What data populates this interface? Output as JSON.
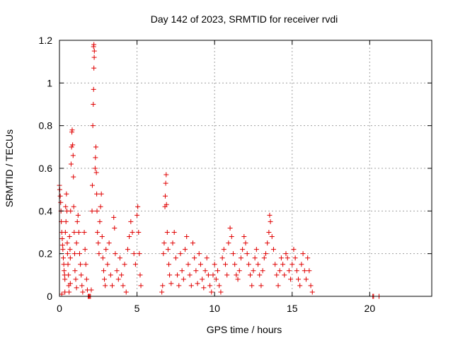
{
  "chart_data": {
    "type": "scatter",
    "title": "Day 142 of 2023, SRMTID for receiver rvdi",
    "xlabel": "GPS time / hours",
    "ylabel": "SRMTID / TECUs",
    "xlim": [
      0,
      24
    ],
    "ylim": [
      0,
      1.2
    ],
    "x_ticks": [
      0,
      5,
      10,
      15,
      20
    ],
    "y_ticks": [
      0,
      0.2,
      0.4,
      0.6,
      0.8,
      1,
      1.2
    ],
    "x_tick_labels": [
      "0",
      "5",
      "10",
      "15",
      "20"
    ],
    "y_tick_labels": [
      "0",
      "0.2",
      "0.4",
      "0.6",
      "0.8",
      "1",
      "1.2"
    ],
    "grid": true,
    "marker": "plus",
    "series": [
      {
        "name": "SRMTID",
        "color": "#e00000",
        "points": [
          [
            0.0,
            0.52
          ],
          [
            0.02,
            0.5
          ],
          [
            0.05,
            0.47
          ],
          [
            0.08,
            0.44
          ],
          [
            0.1,
            0.4
          ],
          [
            0.12,
            0.35
          ],
          [
            0.15,
            0.3
          ],
          [
            0.18,
            0.27
          ],
          [
            0.2,
            0.24
          ],
          [
            0.22,
            0.22
          ],
          [
            0.25,
            0.18
          ],
          [
            0.28,
            0.15
          ],
          [
            0.3,
            0.12
          ],
          [
            0.33,
            0.1
          ],
          [
            0.35,
            0.08
          ],
          [
            0.38,
            0.3
          ],
          [
            0.4,
            0.42
          ],
          [
            0.42,
            0.35
          ],
          [
            0.45,
            0.48
          ],
          [
            0.48,
            0.4
          ],
          [
            0.5,
            0.25
          ],
          [
            0.52,
            0.2
          ],
          [
            0.55,
            0.15
          ],
          [
            0.58,
            0.1
          ],
          [
            0.6,
            0.05
          ],
          [
            0.62,
            0.02
          ],
          [
            0.65,
            0.28
          ],
          [
            0.68,
            0.22
          ],
          [
            0.7,
            0.18
          ],
          [
            0.72,
            0.4
          ],
          [
            0.75,
            0.62
          ],
          [
            0.78,
            0.7
          ],
          [
            0.8,
            0.77
          ],
          [
            0.82,
            0.78
          ],
          [
            0.85,
            0.71
          ],
          [
            0.88,
            0.66
          ],
          [
            0.9,
            0.56
          ],
          [
            0.92,
            0.42
          ],
          [
            0.95,
            0.3
          ],
          [
            0.98,
            0.2
          ],
          [
            1.0,
            0.12
          ],
          [
            1.05,
            0.08
          ],
          [
            1.1,
            0.25
          ],
          [
            1.15,
            0.35
          ],
          [
            1.2,
            0.38
          ],
          [
            1.25,
            0.3
          ],
          [
            1.3,
            0.2
          ],
          [
            1.35,
            0.15
          ],
          [
            1.4,
            0.1
          ],
          [
            1.45,
            0.05
          ],
          [
            1.5,
            0.02
          ],
          [
            1.1,
            0.04
          ],
          [
            0.7,
            0.06
          ],
          [
            0.15,
            0.01
          ],
          [
            0.35,
            0.02
          ],
          [
            1.6,
            0.3
          ],
          [
            1.65,
            0.22
          ],
          [
            1.7,
            0.15
          ],
          [
            1.75,
            0.08
          ],
          [
            1.8,
            0.03
          ],
          [
            1.85,
            0.0
          ],
          [
            1.9,
            0.0
          ],
          [
            1.95,
            0.0
          ],
          [
            2.0,
            0.0
          ],
          [
            2.05,
            0.03
          ],
          [
            2.1,
            0.4
          ],
          [
            2.12,
            0.52
          ],
          [
            2.15,
            0.8
          ],
          [
            2.18,
            0.9
          ],
          [
            2.2,
            0.97
          ],
          [
            2.22,
            1.07
          ],
          [
            2.24,
            1.12
          ],
          [
            2.2,
            1.17
          ],
          [
            2.22,
            1.18
          ],
          [
            2.25,
            1.15
          ],
          [
            2.3,
            0.6
          ],
          [
            2.32,
            0.65
          ],
          [
            2.35,
            0.7
          ],
          [
            2.38,
            0.58
          ],
          [
            2.4,
            0.48
          ],
          [
            2.42,
            0.4
          ],
          [
            2.45,
            0.3
          ],
          [
            2.5,
            0.25
          ],
          [
            2.55,
            0.2
          ],
          [
            2.6,
            0.35
          ],
          [
            2.65,
            0.42
          ],
          [
            2.7,
            0.48
          ],
          [
            2.75,
            0.28
          ],
          [
            2.8,
            0.18
          ],
          [
            2.85,
            0.12
          ],
          [
            2.9,
            0.08
          ],
          [
            2.95,
            0.05
          ],
          [
            3.0,
            0.22
          ],
          [
            3.1,
            0.15
          ],
          [
            3.2,
            0.25
          ],
          [
            3.3,
            0.1
          ],
          [
            3.4,
            0.05
          ],
          [
            3.5,
            0.37
          ],
          [
            3.55,
            0.32
          ],
          [
            3.6,
            0.2
          ],
          [
            3.7,
            0.12
          ],
          [
            3.8,
            0.08
          ],
          [
            3.9,
            0.18
          ],
          [
            4.0,
            0.1
          ],
          [
            4.1,
            0.05
          ],
          [
            4.2,
            0.15
          ],
          [
            4.3,
            0.02
          ],
          [
            4.4,
            0.22
          ],
          [
            4.5,
            0.28
          ],
          [
            4.6,
            0.35
          ],
          [
            4.7,
            0.3
          ],
          [
            4.8,
            0.2
          ],
          [
            4.9,
            0.15
          ],
          [
            5.0,
            0.38
          ],
          [
            5.05,
            0.42
          ],
          [
            5.1,
            0.3
          ],
          [
            5.15,
            0.2
          ],
          [
            5.2,
            0.1
          ],
          [
            5.25,
            0.05
          ],
          [
            6.6,
            0.02
          ],
          [
            6.65,
            0.05
          ],
          [
            6.7,
            0.2
          ],
          [
            6.75,
            0.25
          ],
          [
            6.8,
            0.42
          ],
          [
            6.82,
            0.47
          ],
          [
            6.85,
            0.53
          ],
          [
            6.88,
            0.57
          ],
          [
            6.9,
            0.43
          ],
          [
            6.95,
            0.3
          ],
          [
            7.0,
            0.22
          ],
          [
            7.05,
            0.15
          ],
          [
            7.1,
            0.1
          ],
          [
            7.2,
            0.06
          ],
          [
            7.3,
            0.25
          ],
          [
            7.4,
            0.3
          ],
          [
            7.5,
            0.18
          ],
          [
            7.6,
            0.1
          ],
          [
            7.7,
            0.05
          ],
          [
            7.8,
            0.2
          ],
          [
            7.9,
            0.12
          ],
          [
            8.0,
            0.08
          ],
          [
            8.1,
            0.22
          ],
          [
            8.2,
            0.28
          ],
          [
            8.3,
            0.15
          ],
          [
            8.4,
            0.1
          ],
          [
            8.5,
            0.05
          ],
          [
            8.6,
            0.25
          ],
          [
            8.7,
            0.18
          ],
          [
            8.8,
            0.12
          ],
          [
            8.9,
            0.06
          ],
          [
            9.0,
            0.2
          ],
          [
            9.1,
            0.15
          ],
          [
            9.2,
            0.08
          ],
          [
            9.3,
            0.04
          ],
          [
            9.4,
            0.12
          ],
          [
            9.5,
            0.18
          ],
          [
            9.6,
            0.1
          ],
          [
            9.7,
            0.05
          ],
          [
            9.8,
            0.02
          ],
          [
            9.9,
            0.1
          ],
          [
            10.0,
            0.15
          ],
          [
            10.1,
            0.08
          ],
          [
            10.2,
            0.12
          ],
          [
            10.3,
            0.05
          ],
          [
            10.4,
            0.02
          ],
          [
            10.5,
            0.18
          ],
          [
            10.6,
            0.22
          ],
          [
            10.7,
            0.15
          ],
          [
            10.8,
            0.1
          ],
          [
            10.9,
            0.25
          ],
          [
            11.0,
            0.32
          ],
          [
            11.1,
            0.28
          ],
          [
            11.2,
            0.2
          ],
          [
            11.3,
            0.15
          ],
          [
            11.4,
            0.1
          ],
          [
            11.5,
            0.08
          ],
          [
            11.6,
            0.12
          ],
          [
            11.7,
            0.18
          ],
          [
            11.8,
            0.22
          ],
          [
            11.9,
            0.28
          ],
          [
            12.0,
            0.25
          ],
          [
            12.1,
            0.2
          ],
          [
            12.2,
            0.15
          ],
          [
            12.3,
            0.1
          ],
          [
            12.4,
            0.05
          ],
          [
            12.5,
            0.12
          ],
          [
            12.6,
            0.18
          ],
          [
            12.7,
            0.22
          ],
          [
            12.8,
            0.15
          ],
          [
            12.9,
            0.1
          ],
          [
            13.0,
            0.05
          ],
          [
            13.1,
            0.12
          ],
          [
            13.2,
            0.18
          ],
          [
            13.3,
            0.2
          ],
          [
            13.4,
            0.25
          ],
          [
            13.5,
            0.3
          ],
          [
            13.55,
            0.38
          ],
          [
            13.6,
            0.35
          ],
          [
            13.7,
            0.28
          ],
          [
            13.8,
            0.22
          ],
          [
            13.9,
            0.15
          ],
          [
            14.0,
            0.1
          ],
          [
            14.1,
            0.05
          ],
          [
            14.2,
            0.12
          ],
          [
            14.3,
            0.18
          ],
          [
            14.4,
            0.15
          ],
          [
            14.5,
            0.1
          ],
          [
            14.6,
            0.2
          ],
          [
            14.7,
            0.18
          ],
          [
            14.8,
            0.12
          ],
          [
            14.9,
            0.08
          ],
          [
            15.0,
            0.15
          ],
          [
            15.1,
            0.22
          ],
          [
            15.2,
            0.18
          ],
          [
            15.3,
            0.12
          ],
          [
            15.4,
            0.08
          ],
          [
            15.5,
            0.05
          ],
          [
            15.6,
            0.15
          ],
          [
            15.7,
            0.2
          ],
          [
            15.8,
            0.12
          ],
          [
            15.9,
            0.08
          ],
          [
            16.0,
            0.18
          ],
          [
            16.1,
            0.12
          ],
          [
            16.2,
            0.05
          ],
          [
            16.3,
            0.02
          ],
          [
            20.2,
            0.0
          ],
          [
            20.25,
            0.0
          ],
          [
            20.6,
            0.0
          ]
        ]
      }
    ]
  }
}
